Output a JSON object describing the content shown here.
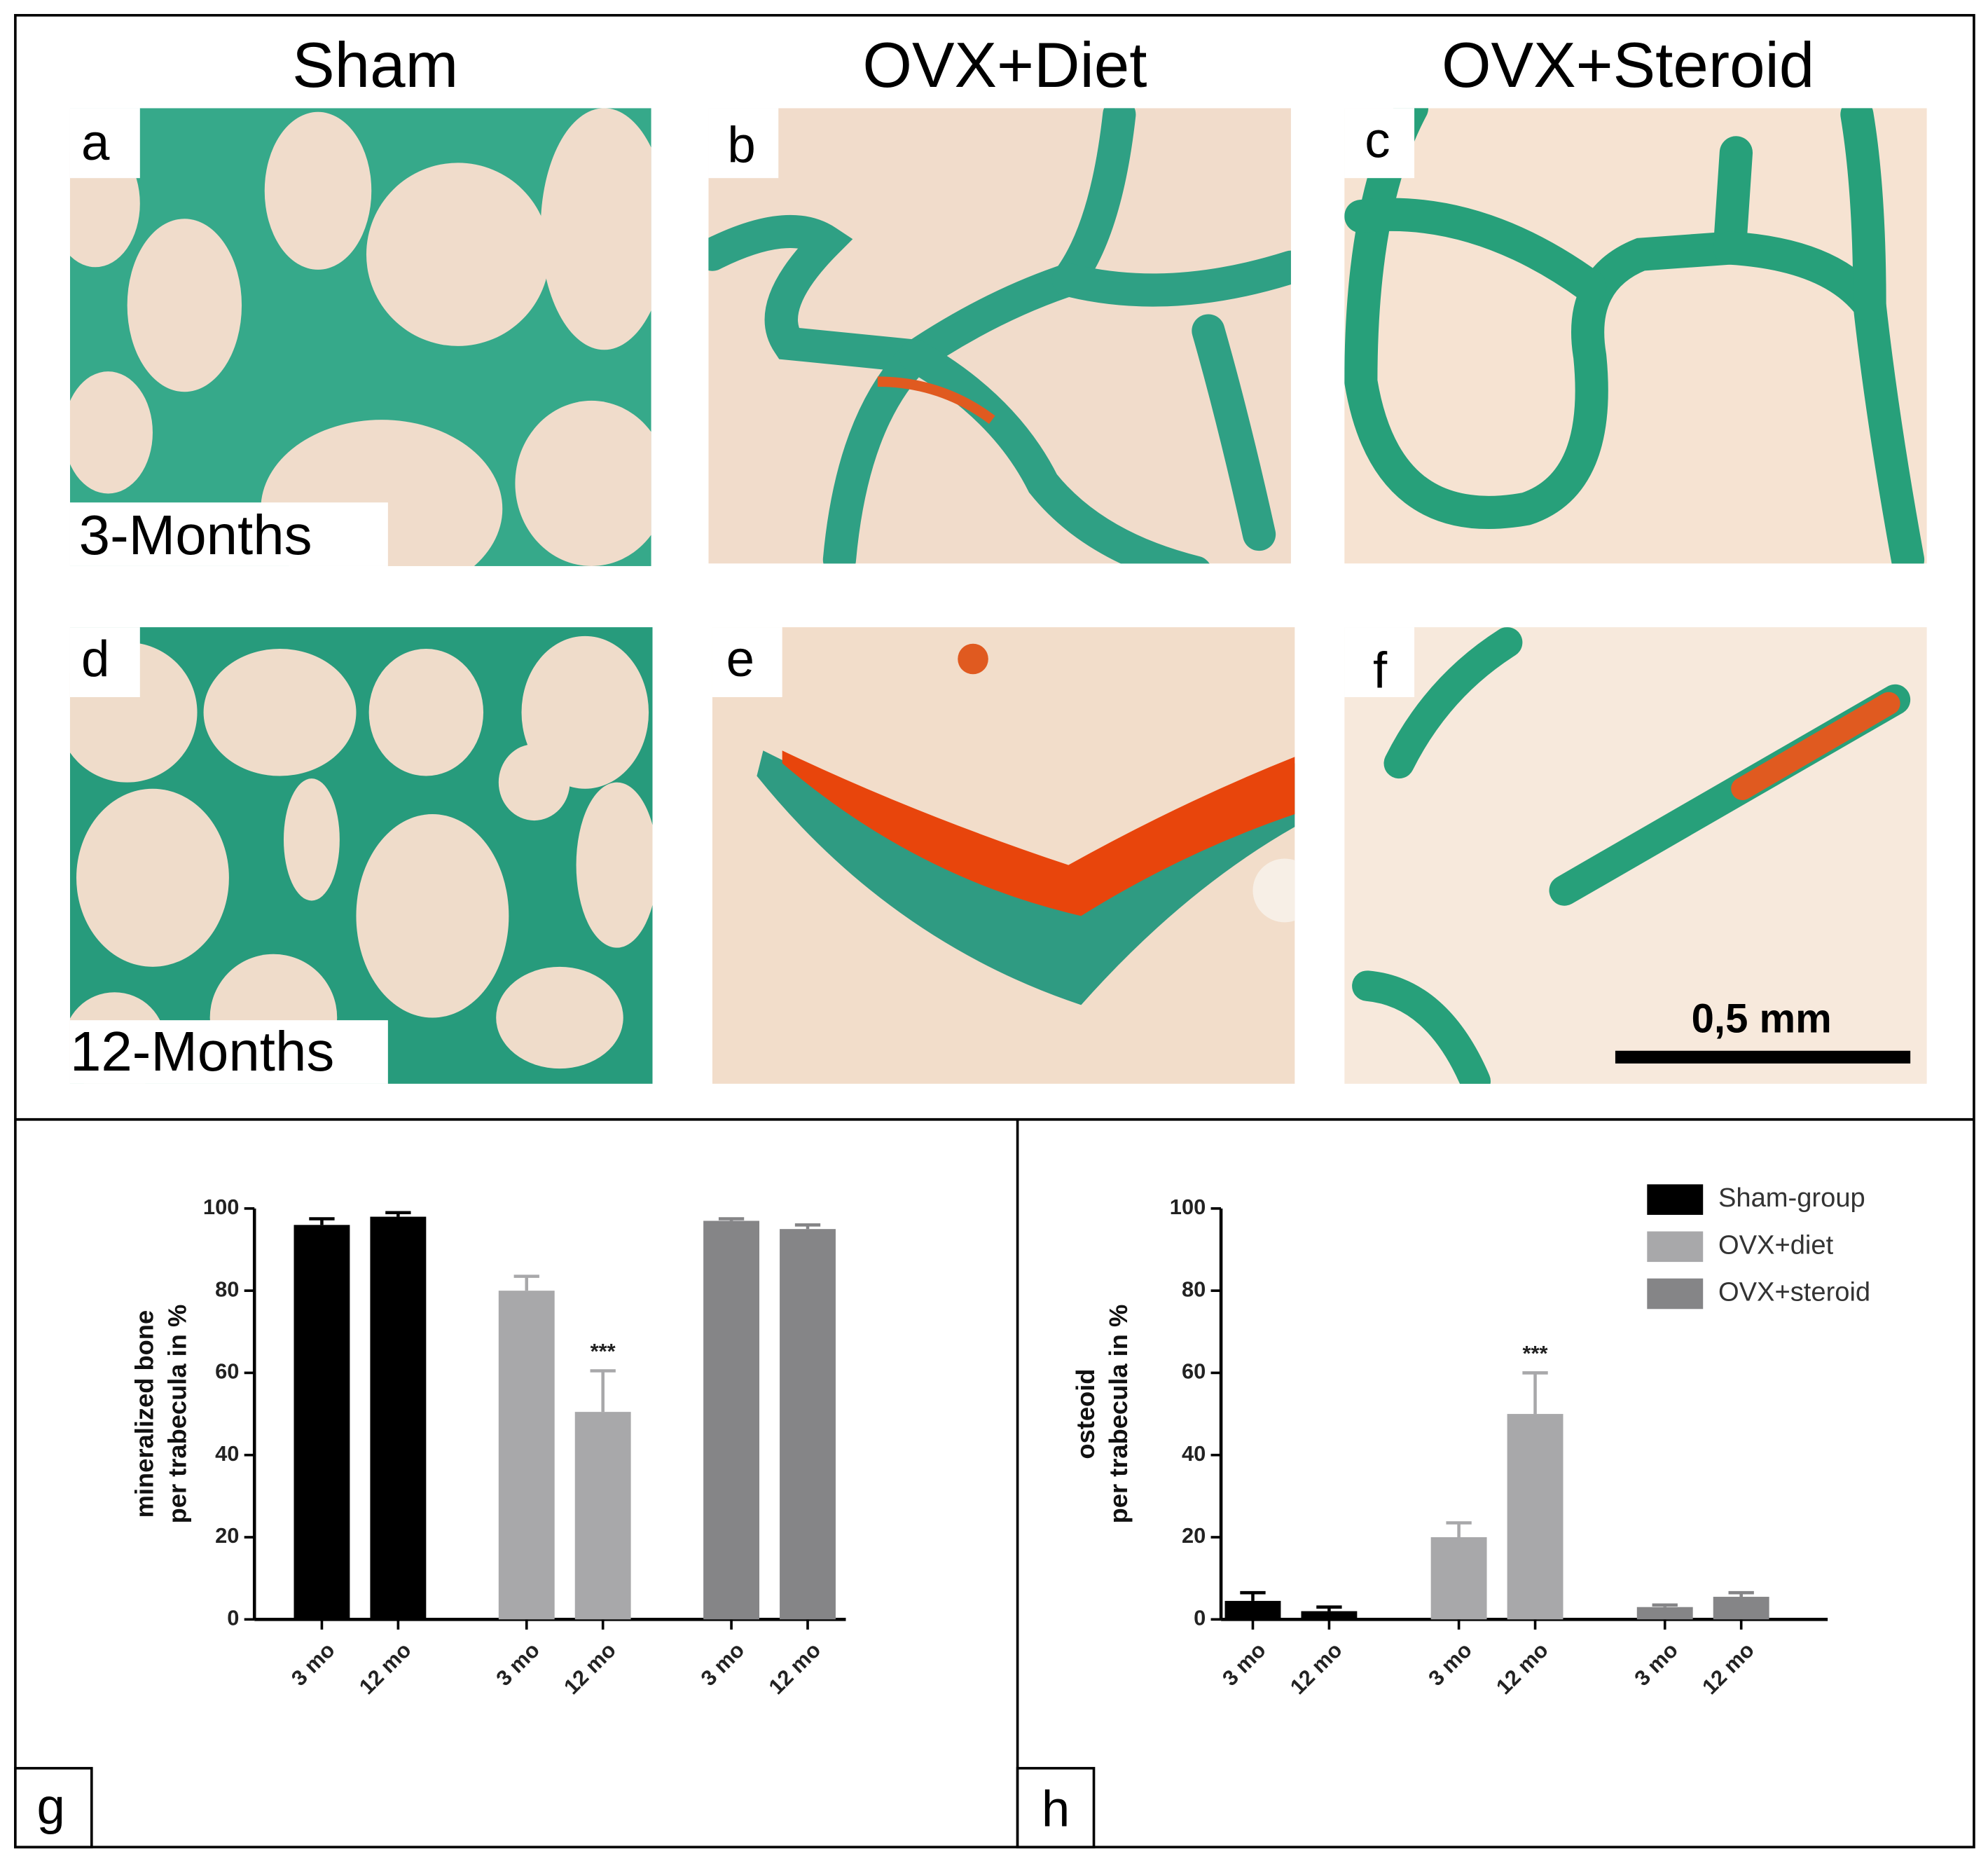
{
  "panels": {
    "columns": [
      "Sham",
      "OVX+Diet",
      "OVX+Steroid"
    ],
    "letters": [
      "a",
      "b",
      "c",
      "d",
      "e",
      "f"
    ],
    "rows": [
      "3-Months",
      "12-Months"
    ],
    "scale_bar": "0,5 mm"
  },
  "chart_data": [
    {
      "type": "bar",
      "panel": "g",
      "ylabel": [
        "mineralized bone",
        "per trabecula in %"
      ],
      "categories": [
        "3 mo",
        "12 mo"
      ],
      "series": [
        {
          "color": "#000000",
          "values": [
            96,
            98
          ],
          "errors": [
            1.5,
            1
          ]
        },
        {
          "color": "#a8a8aa",
          "values": [
            80,
            50.5
          ],
          "errors": [
            3.5,
            10
          ],
          "annotations": [
            null,
            "***"
          ]
        },
        {
          "color": "#858587",
          "values": [
            97,
            95
          ],
          "errors": [
            0.5,
            1
          ]
        }
      ],
      "ylim": [
        0,
        100
      ],
      "yticks": [
        0,
        20,
        40,
        60,
        80,
        100
      ]
    },
    {
      "type": "bar",
      "panel": "h",
      "ylabel": [
        "osteoid",
        "per trabecula in %"
      ],
      "categories": [
        "3 mo",
        "12 mo"
      ],
      "series": [
        {
          "name": "Sham-group",
          "color": "#000000",
          "values": [
            4.5,
            2
          ],
          "errors": [
            2,
            1
          ]
        },
        {
          "name": "OVX+diet",
          "color": "#a8a8aa",
          "values": [
            20,
            50
          ],
          "errors": [
            3.5,
            10
          ],
          "annotations": [
            null,
            "***"
          ]
        },
        {
          "name": "OVX+steroid",
          "color": "#858587",
          "values": [
            3,
            5.5
          ],
          "errors": [
            0.5,
            1
          ]
        }
      ],
      "ylim": [
        0,
        100
      ],
      "yticks": [
        0,
        20,
        40,
        60,
        80,
        100
      ],
      "legend": "upper right"
    }
  ]
}
